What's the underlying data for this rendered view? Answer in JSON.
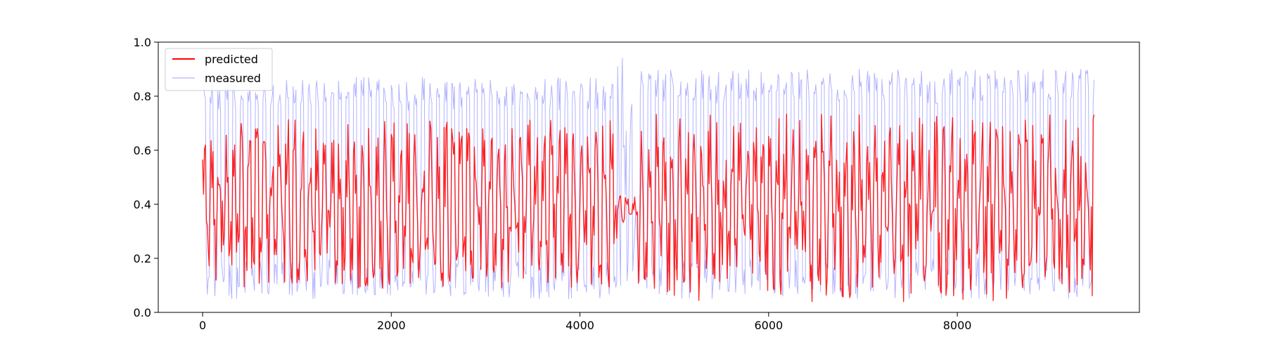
{
  "chart_data": {
    "type": "line",
    "title": "",
    "xlabel": "",
    "ylabel": "",
    "xlim": [
      -470,
      9930
    ],
    "ylim": [
      0.0,
      1.0
    ],
    "grid": false,
    "legend_placement": "top-left",
    "x_ticks": [
      0,
      2000,
      4000,
      6000,
      8000
    ],
    "x_tick_labels": [
      "0",
      "2000",
      "4000",
      "6000",
      "8000"
    ],
    "y_ticks": [
      0.0,
      0.2,
      0.4,
      0.6,
      0.8,
      1.0
    ],
    "y_tick_labels": [
      "0.0",
      "0.2",
      "0.4",
      "0.6",
      "0.8",
      "1.0"
    ],
    "x_range": [
      0,
      9450
    ],
    "n_points": 9450,
    "series": [
      {
        "name": "measured",
        "color": "#b3b3ff",
        "typical_min": 0.04,
        "typical_max": 0.9,
        "observed_min": 0.02,
        "observed_max": 0.99,
        "segments": [
          {
            "x": [
              0,
              4400
            ],
            "low": 0.05,
            "high": 0.87
          },
          {
            "x": [
              4400,
              4620
            ],
            "low": 0.02,
            "high": 0.98
          },
          {
            "x": [
              4620,
              9450
            ],
            "low": 0.05,
            "high": 0.9
          }
        ]
      },
      {
        "name": "predicted",
        "color": "#ff0000",
        "typical_min": 0.08,
        "typical_max": 0.72,
        "observed_min": 0.04,
        "observed_max": 0.81,
        "segments": [
          {
            "x": [
              0,
              4400
            ],
            "low": 0.1,
            "high": 0.7
          },
          {
            "x": [
              4400,
              4620
            ],
            "low": 0.32,
            "high": 0.43
          },
          {
            "x": [
              4620,
              9450
            ],
            "low": 0.05,
            "high": 0.72
          }
        ]
      }
    ]
  },
  "legend": {
    "items": [
      {
        "label": "predicted",
        "color": "#ff0000"
      },
      {
        "label": "measured",
        "color": "#b3b3ff"
      }
    ]
  }
}
